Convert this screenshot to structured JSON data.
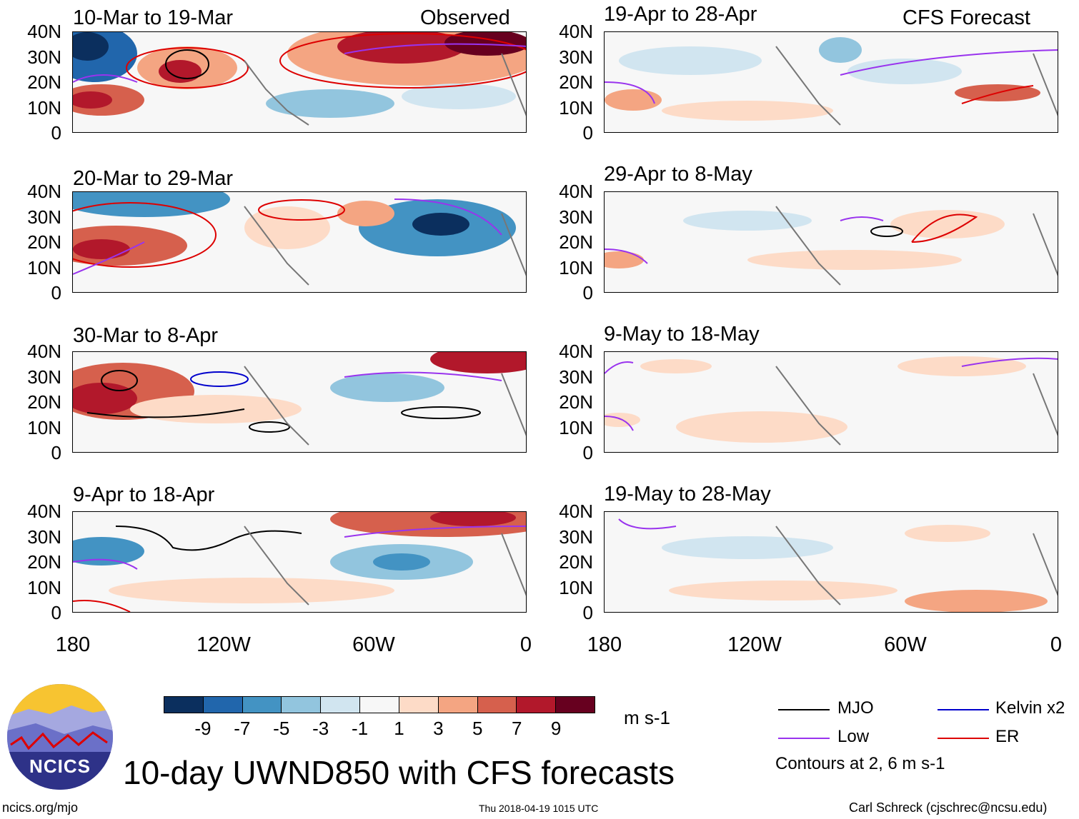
{
  "title": "10-day UWND850 with CFS forecasts",
  "section_labels": {
    "observed": "Observed",
    "forecast": "CFS Forecast"
  },
  "lat_labels": [
    "40N",
    "30N",
    "20N",
    "10N",
    "0"
  ],
  "lon_labels": [
    "180",
    "120W",
    "60W",
    "0"
  ],
  "panels_observed": [
    {
      "period": "10-Mar to 19-Mar"
    },
    {
      "period": "20-Mar to 29-Mar"
    },
    {
      "period": "30-Mar to 8-Apr"
    },
    {
      "period": "9-Apr to 18-Apr"
    }
  ],
  "panels_forecast": [
    {
      "period": "19-Apr to 28-Apr"
    },
    {
      "period": "29-Apr to 8-May"
    },
    {
      "period": "9-May to 18-May"
    },
    {
      "period": "19-May to 28-May"
    }
  ],
  "colorbar": {
    "ticks": [
      "-9",
      "-7",
      "-5",
      "-3",
      "-1",
      "1",
      "3",
      "5",
      "7",
      "9"
    ],
    "units": "m s-1",
    "colors": [
      "#0b2f5e",
      "#2166ac",
      "#4393c3",
      "#92c5de",
      "#d1e5f0",
      "#f7f7f7",
      "#fddbc7",
      "#f4a582",
      "#d6604d",
      "#b2182b",
      "#67001f"
    ]
  },
  "legend": {
    "items": [
      {
        "label": "MJO",
        "color": "#000000"
      },
      {
        "label": "Kelvin x2",
        "color": "#0000cc"
      },
      {
        "label": "Low",
        "color": "#9933ee"
      },
      {
        "label": "ER",
        "color": "#dd0000"
      }
    ],
    "contours_note": "Contours at 2, 6 m s-1"
  },
  "logo_text": "NCICS",
  "footer": {
    "left": "ncics.org/mjo",
    "center": "Thu 2018-04-19 1015 UTC",
    "right": "Carl Schreck (cjschrec@ncsu.edu)"
  }
}
